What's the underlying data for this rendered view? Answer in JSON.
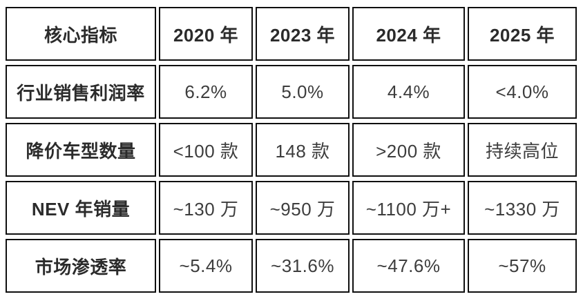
{
  "chart_data": {
    "type": "table",
    "title": "",
    "columns": [
      "核心指标",
      "2020 年",
      "2023 年",
      "2024 年",
      "2025 年"
    ],
    "rows": [
      [
        "行业销售利润率",
        "6.2%",
        "5.0%",
        "4.4%",
        "<4.0%"
      ],
      [
        "降价车型数量",
        "<100 款",
        "148 款",
        ">200 款",
        "持续高位"
      ],
      [
        "NEV 年销量",
        "~130 万",
        "~950 万",
        "~1100 万+",
        "~1330 万"
      ],
      [
        "市场渗透率",
        "~5.4%",
        "~31.6%",
        "~47.6%",
        "~57%"
      ]
    ],
    "layout_hints": {
      "grid": "separate-bordered-cells",
      "header_bold": true,
      "first_column_bold": true
    }
  },
  "colors": {
    "border": "#0f0f0f",
    "header_text": "#2b2b2b",
    "data_text": "#3d3d3d",
    "background": "#ffffff"
  }
}
